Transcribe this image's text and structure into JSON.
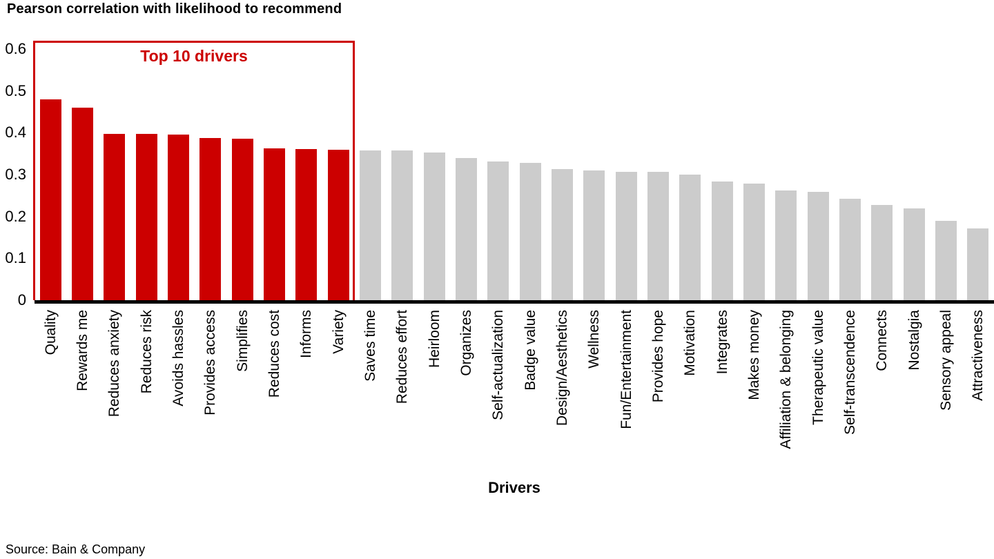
{
  "title": "Pearson correlation with likelihood to recommend",
  "colors": {
    "highlight": "#cc0000",
    "default": "#cccccc",
    "axis": "#000000"
  },
  "chart_data": {
    "type": "bar",
    "title": "Pearson correlation with likelihood to recommend",
    "annotation": "Top 10 drivers",
    "xlabel": "Drivers",
    "ylabel": "",
    "source": "Source: Bain & Company",
    "ylim": [
      0,
      0.6
    ],
    "ytick_labels": [
      "0",
      "0.1",
      "0.2",
      "0.3",
      "0.4",
      "0.5",
      "0.6"
    ],
    "grid": false,
    "legend": "none",
    "highlight_count": 10,
    "categories": [
      "Quality",
      "Rewards me",
      "Reduces anxiety",
      "Reduces risk",
      "Avoids hassles",
      "Provides access",
      "Simplifies",
      "Reduces cost",
      "Informs",
      "Variety",
      "Saves time",
      "Reduces effort",
      "Heirloom",
      "Organizes",
      "Self-actualization",
      "Badge value",
      "Design/Aesthetics",
      "Wellness",
      "Fun/Entertainment",
      "Provides hope",
      "Motivation",
      "Integrates",
      "Makes money",
      "Affiliation & belonging",
      "Therapeutic value",
      "Self-transcendence",
      "Connects",
      "Nostalgia",
      "Sensory appeal",
      "Attractiveness"
    ],
    "values": [
      0.48,
      0.46,
      0.398,
      0.397,
      0.395,
      0.388,
      0.385,
      0.362,
      0.361,
      0.359,
      0.358,
      0.357,
      0.352,
      0.339,
      0.332,
      0.328,
      0.313,
      0.31,
      0.307,
      0.306,
      0.3,
      0.284,
      0.278,
      0.262,
      0.259,
      0.243,
      0.228,
      0.219,
      0.189,
      0.172
    ]
  }
}
